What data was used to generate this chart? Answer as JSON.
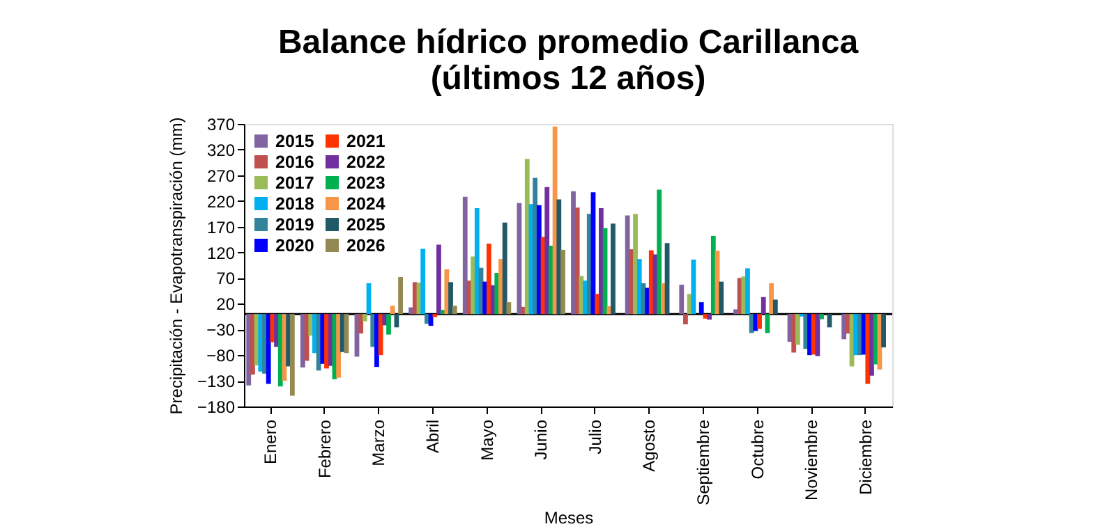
{
  "chart_data": {
    "type": "bar",
    "title": [
      "Balance hídrico promedio Carillanca",
      "(últimos 12 años)"
    ],
    "xlabel": "Meses",
    "ylabel": "Precipitación - Evapotranspiración (mm)",
    "categories": [
      "Enero",
      "Febrero",
      "Marzo",
      "Abril",
      "Mayo",
      "Junio",
      "Julio",
      "Agosto",
      "Septiembre",
      "Octubre",
      "Noviembre",
      "Diciembre"
    ],
    "series": [
      {
        "name": "2015",
        "color": "#8064a2",
        "values": [
          -139,
          -104,
          -83,
          13,
          228,
          216,
          239,
          192,
          57,
          9,
          -54,
          -49
        ]
      },
      {
        "name": "2016",
        "color": "#c0504d",
        "values": [
          -118,
          -91,
          -38,
          62,
          65,
          14,
          207,
          126,
          -20,
          70,
          -75,
          -38
        ]
      },
      {
        "name": "2017",
        "color": "#9bbb59",
        "values": [
          -100,
          -42,
          -14,
          61,
          112,
          302,
          74,
          195,
          39,
          73,
          -60,
          -102
        ]
      },
      {
        "name": "2018",
        "color": "#00b0f0",
        "values": [
          -112,
          -76,
          60,
          127,
          206,
          214,
          65,
          107,
          106,
          89,
          -5,
          -80
        ]
      },
      {
        "name": "2019",
        "color": "#31849b",
        "values": [
          -116,
          -110,
          -64,
          -19,
          90,
          265,
          195,
          60,
          null,
          -37,
          -68,
          -80
        ]
      },
      {
        "name": "2020",
        "color": "#0000ff",
        "values": [
          -136,
          -97,
          -103,
          -23,
          63,
          212,
          237,
          51,
          23,
          -33,
          -80,
          -79
        ]
      },
      {
        "name": "2021",
        "color": "#ff3300",
        "values": [
          -55,
          -106,
          -80,
          -6,
          137,
          150,
          39,
          124,
          -9,
          -29,
          -79,
          -136
        ]
      },
      {
        "name": "2022",
        "color": "#7030a0",
        "values": [
          -64,
          -101,
          -22,
          135,
          56,
          247,
          206,
          116,
          -11,
          33,
          -82,
          -120
        ]
      },
      {
        "name": "2023",
        "color": "#00b050",
        "values": [
          -141,
          -127,
          -40,
          8,
          80,
          133,
          167,
          242,
          152,
          -37,
          -10,
          -98
        ]
      },
      {
        "name": "2024",
        "color": "#f79646",
        "values": [
          -130,
          -124,
          16,
          87,
          107,
          365,
          15,
          60,
          123,
          60,
          null,
          -108
        ]
      },
      {
        "name": "2025",
        "color": "#215968",
        "values": [
          -102,
          -74,
          -26,
          62,
          178,
          223,
          176,
          138,
          63,
          28,
          -26,
          -65
        ]
      },
      {
        "name": "2026",
        "color": "#938953",
        "values": [
          -159,
          -76,
          72,
          16,
          23,
          125,
          null,
          null,
          null,
          null,
          null,
          null
        ]
      }
    ],
    "ylim": [
      -180,
      370
    ],
    "yticks": [
      -180,
      -130,
      -80,
      -30,
      20,
      70,
      120,
      170,
      220,
      270,
      320,
      370
    ],
    "ref_lines": [
      {
        "axis": "y",
        "value": 0,
        "color": "#000000"
      }
    ],
    "legend": "top left",
    "grid": false
  }
}
